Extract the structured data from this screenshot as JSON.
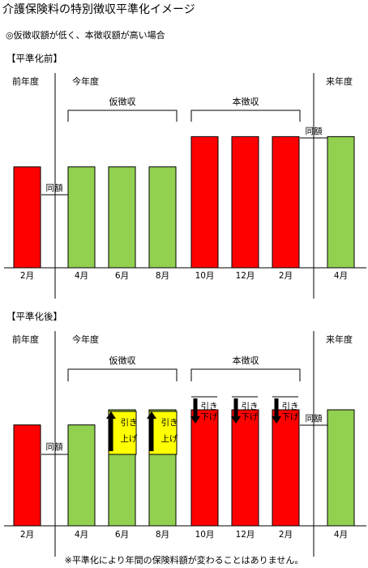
{
  "title": "介護保険料の特別徴収平準化イメージ",
  "subtitle": "◎仮徴収額が低く、本徴収額が高い場合",
  "year_labels": {
    "prev": "前年度",
    "current": "今年度",
    "next": "来年度"
  },
  "groups": {
    "provisional": "仮徴収",
    "main": "本徴収"
  },
  "same_label": "同額",
  "adjust": {
    "up": "引き上げ",
    "down": "引き下げ"
  },
  "colors": {
    "red": "#ff0000",
    "green": "#92d050",
    "yellow": "#ffff00"
  },
  "footnote": "※平準化により年間の保険料額が変わることはありません。",
  "chart_data": [
    {
      "type": "bar",
      "title": "【平準化前】",
      "categories": [
        "2月",
        "4月",
        "6月",
        "8月",
        "10月",
        "12月",
        "2月",
        "4月"
      ],
      "values": [
        1,
        1,
        1,
        1,
        1.3,
        1.3,
        1.3,
        1.3
      ],
      "colors": [
        "red",
        "green",
        "green",
        "green",
        "red",
        "red",
        "red",
        "green"
      ],
      "ylim": [
        0,
        1.85
      ]
    },
    {
      "type": "bar",
      "title": "【平準化後】",
      "categories": [
        "2月",
        "4月",
        "6月",
        "8月",
        "10月",
        "12月",
        "2月",
        "4月"
      ],
      "values": [
        1,
        1,
        1.15,
        1.15,
        1.15,
        1.15,
        1.15,
        1.15
      ],
      "colors": [
        "red",
        "green",
        "green",
        "green",
        "red",
        "red",
        "red",
        "green"
      ],
      "ylim": [
        0,
        1.85
      ]
    }
  ]
}
